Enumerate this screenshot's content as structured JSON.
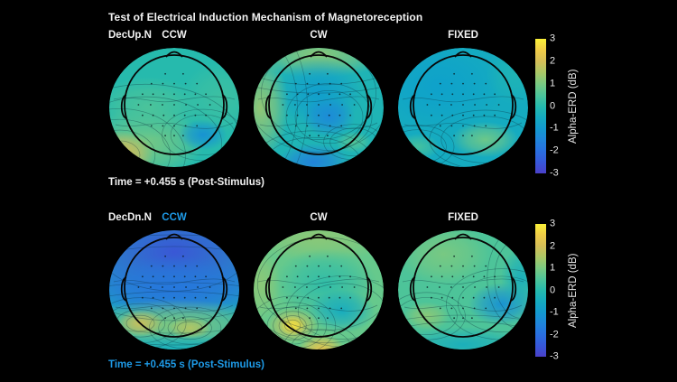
{
  "title": "Test of Electrical Induction Mechanism of Magnetoreception",
  "colors": {
    "background": "#000000",
    "text": "#f2f2f2",
    "highlight_blue": "#1e9be8",
    "head_outline": "#070707"
  },
  "colorbar": {
    "label": "Alpha-ERD (dB)",
    "ticks": [
      "3",
      "2",
      "1",
      "0",
      "-1",
      "-2",
      "-3"
    ],
    "max": 3,
    "min": -3
  },
  "chart_data": {
    "type": "heatmap",
    "subtype": "eeg-topographic-map-grid",
    "title": "Test of Electrical Induction Mechanism of Magnetoreception",
    "value_label": "Alpha-ERD (dB)",
    "value_unit": "dB",
    "value_range": [
      -3,
      3
    ],
    "colormap": "parula",
    "columns": [
      "CCW",
      "CW",
      "FIXED"
    ],
    "rows": [
      {
        "row_label": "DecUp.N",
        "time_label": "Time = +0.455 s (Post-Stimulus)",
        "time_highlighted": false,
        "panels": [
          {
            "condition": "CCW",
            "condition_highlighted": false,
            "base_db": 0,
            "hotspots": [
              {
                "x": 0.3,
                "y": 0.5,
                "rx": 0.42,
                "ry": 0.26,
                "db": 0.5
              },
              {
                "x": 0.85,
                "y": 0.42,
                "rx": 0.3,
                "ry": 0.3,
                "db": 0.3
              },
              {
                "x": 0.28,
                "y": 0.8,
                "rx": 0.45,
                "ry": 0.3,
                "db": 1.0
              },
              {
                "x": 0.08,
                "y": 0.9,
                "rx": 0.26,
                "ry": 0.2,
                "db": 2.2
              },
              {
                "x": 0.72,
                "y": 0.73,
                "rx": 0.19,
                "ry": 0.13,
                "db": -1.2
              }
            ]
          },
          {
            "condition": "CW",
            "condition_highlighted": false,
            "base_db": -0.2,
            "hotspots": [
              {
                "x": 0.5,
                "y": 0.05,
                "rx": 0.55,
                "ry": 0.2,
                "db": 1.2
              },
              {
                "x": 0.05,
                "y": 0.5,
                "rx": 0.22,
                "ry": 0.45,
                "db": 1.3
              },
              {
                "x": 0.5,
                "y": 0.38,
                "rx": 0.34,
                "ry": 0.3,
                "db": -0.9
              },
              {
                "x": 0.58,
                "y": 0.58,
                "rx": 0.2,
                "ry": 0.17,
                "db": -1.4
              },
              {
                "x": 0.46,
                "y": 0.96,
                "rx": 0.28,
                "ry": 0.16,
                "db": -1.6
              },
              {
                "x": 0.77,
                "y": 0.79,
                "rx": 0.14,
                "ry": 0.09,
                "db": 0.6
              }
            ]
          },
          {
            "condition": "FIXED",
            "condition_highlighted": false,
            "base_db": -0.5,
            "hotspots": [
              {
                "x": 0.32,
                "y": 0.32,
                "rx": 0.48,
                "ry": 0.38,
                "db": -0.8
              },
              {
                "x": 0.9,
                "y": 0.22,
                "rx": 0.22,
                "ry": 0.26,
                "db": -0.2
              },
              {
                "x": 0.67,
                "y": 0.77,
                "rx": 0.26,
                "ry": 0.15,
                "db": 0.9
              },
              {
                "x": 0.15,
                "y": 0.83,
                "rx": 0.17,
                "ry": 0.11,
                "db": 0.4
              }
            ]
          }
        ]
      },
      {
        "row_label": "DecDn.N",
        "time_label": "Time = +0.455 s (Post-Stimulus)",
        "time_highlighted": true,
        "panels": [
          {
            "condition": "CCW",
            "condition_highlighted": true,
            "base_db": -0.4,
            "hotspots": [
              {
                "x": 0.5,
                "y": 0.18,
                "rx": 0.95,
                "ry": 0.55,
                "db": -2.6
              },
              {
                "x": 0.5,
                "y": 0.5,
                "rx": 0.8,
                "ry": 0.28,
                "db": -1.8
              },
              {
                "x": 0.5,
                "y": 0.8,
                "rx": 0.78,
                "ry": 0.22,
                "db": 1.1
              },
              {
                "x": 0.24,
                "y": 0.78,
                "rx": 0.18,
                "ry": 0.11,
                "db": 1.9
              },
              {
                "x": 0.62,
                "y": 0.82,
                "rx": 0.16,
                "ry": 0.09,
                "db": 1.6
              },
              {
                "x": 0.5,
                "y": 1.0,
                "rx": 0.55,
                "ry": 0.14,
                "db": -0.3
              }
            ]
          },
          {
            "condition": "CW",
            "condition_highlighted": false,
            "base_db": 0.8,
            "hotspots": [
              {
                "x": 0.5,
                "y": 0.06,
                "rx": 0.6,
                "ry": 0.2,
                "db": 1.2
              },
              {
                "x": 0.05,
                "y": 0.45,
                "rx": 0.16,
                "ry": 0.32,
                "db": 1.2
              },
              {
                "x": 0.55,
                "y": 0.45,
                "rx": 0.4,
                "ry": 0.3,
                "db": 0.1
              },
              {
                "x": 0.68,
                "y": 0.68,
                "rx": 0.26,
                "ry": 0.18,
                "db": -0.5
              },
              {
                "x": 0.3,
                "y": 0.8,
                "rx": 0.2,
                "ry": 0.15,
                "db": 1.8
              },
              {
                "x": 0.3,
                "y": 0.8,
                "rx": 0.1,
                "ry": 0.08,
                "db": 2.8
              },
              {
                "x": 0.52,
                "y": 1.0,
                "rx": 0.18,
                "ry": 0.13,
                "db": 2.4
              }
            ]
          },
          {
            "condition": "FIXED",
            "condition_highlighted": false,
            "base_db": 0.5,
            "hotspots": [
              {
                "x": 0.35,
                "y": 0.2,
                "rx": 0.36,
                "ry": 0.26,
                "db": 1.0
              },
              {
                "x": 0.95,
                "y": 0.4,
                "rx": 0.16,
                "ry": 0.26,
                "db": -0.4
              },
              {
                "x": 0.8,
                "y": 0.62,
                "rx": 0.26,
                "ry": 0.18,
                "db": -1.2
              },
              {
                "x": 0.22,
                "y": 0.72,
                "rx": 0.18,
                "ry": 0.12,
                "db": 1.2
              },
              {
                "x": 0.5,
                "y": 0.96,
                "rx": 0.52,
                "ry": 0.15,
                "db": -0.4
              }
            ]
          }
        ]
      }
    ]
  }
}
